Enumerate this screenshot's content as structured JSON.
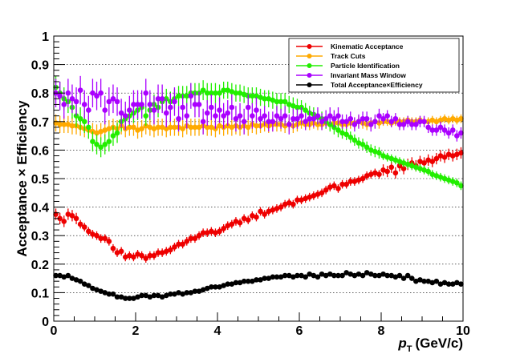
{
  "chart_data": {
    "type": "scatter",
    "xlabel_main": "p",
    "xlabel_sub": "T",
    "xlabel_unit": "(GeV/c)",
    "ylabel": "Acceptance × Efficiency",
    "xlim": [
      0,
      10
    ],
    "ylim": [
      0,
      1
    ],
    "xticks": [
      "0",
      "2",
      "4",
      "6",
      "8",
      "10"
    ],
    "yticks": [
      "0",
      "0.1",
      "0.2",
      "0.3",
      "0.4",
      "0.5",
      "0.6",
      "0.7",
      "0.8",
      "0.9",
      "1"
    ],
    "grid": "horizontal dotted",
    "legend_position": "top-right",
    "x": [
      0.05,
      0.15,
      0.25,
      0.35,
      0.45,
      0.55,
      0.65,
      0.75,
      0.85,
      0.95,
      1.05,
      1.15,
      1.25,
      1.35,
      1.45,
      1.55,
      1.65,
      1.75,
      1.85,
      1.95,
      2.05,
      2.15,
      2.25,
      2.35,
      2.45,
      2.55,
      2.65,
      2.75,
      2.85,
      2.95,
      3.05,
      3.15,
      3.25,
      3.35,
      3.45,
      3.55,
      3.65,
      3.75,
      3.85,
      3.95,
      4.05,
      4.15,
      4.25,
      4.35,
      4.45,
      4.55,
      4.65,
      4.75,
      4.85,
      4.95,
      5.05,
      5.15,
      5.25,
      5.35,
      5.45,
      5.55,
      5.65,
      5.75,
      5.85,
      5.95,
      6.05,
      6.15,
      6.25,
      6.35,
      6.45,
      6.55,
      6.65,
      6.75,
      6.85,
      6.95,
      7.05,
      7.15,
      7.25,
      7.35,
      7.45,
      7.55,
      7.65,
      7.75,
      7.85,
      7.95,
      8.05,
      8.15,
      8.25,
      8.35,
      8.45,
      8.55,
      8.65,
      8.75,
      8.85,
      8.95,
      9.05,
      9.15,
      9.25,
      9.35,
      9.45,
      9.55,
      9.65,
      9.75,
      9.85,
      9.95
    ],
    "series": [
      {
        "name": "Kinematic Acceptance",
        "color": "#ee0000",
        "values": [
          0.375,
          0.36,
          0.35,
          0.375,
          0.37,
          0.36,
          0.34,
          0.33,
          0.315,
          0.305,
          0.3,
          0.29,
          0.29,
          0.28,
          0.255,
          0.24,
          0.245,
          0.225,
          0.23,
          0.225,
          0.235,
          0.23,
          0.22,
          0.23,
          0.23,
          0.24,
          0.24,
          0.245,
          0.25,
          0.26,
          0.27,
          0.27,
          0.28,
          0.29,
          0.29,
          0.3,
          0.31,
          0.31,
          0.315,
          0.31,
          0.315,
          0.325,
          0.335,
          0.34,
          0.35,
          0.345,
          0.36,
          0.355,
          0.37,
          0.365,
          0.385,
          0.375,
          0.385,
          0.39,
          0.395,
          0.4,
          0.41,
          0.415,
          0.41,
          0.425,
          0.425,
          0.43,
          0.435,
          0.44,
          0.445,
          0.45,
          0.46,
          0.47,
          0.475,
          0.465,
          0.48,
          0.48,
          0.49,
          0.49,
          0.495,
          0.5,
          0.51,
          0.515,
          0.52,
          0.515,
          0.53,
          0.525,
          0.54,
          0.52,
          0.545,
          0.535,
          0.55,
          0.555,
          0.545,
          0.56,
          0.555,
          0.565,
          0.56,
          0.57,
          0.58,
          0.575,
          0.585,
          0.58,
          0.585,
          0.59
        ],
        "errors": [
          0.02,
          0.02,
          0.02,
          0.02,
          0.02,
          0.02,
          0.015,
          0.015,
          0.015,
          0.015,
          0.015,
          0.015,
          0.015,
          0.015,
          0.015,
          0.015,
          0.015,
          0.015,
          0.015,
          0.015,
          0.015,
          0.015,
          0.015,
          0.015,
          0.015,
          0.015,
          0.015,
          0.015,
          0.015,
          0.015,
          0.015,
          0.015,
          0.015,
          0.015,
          0.015,
          0.015,
          0.015,
          0.015,
          0.015,
          0.015,
          0.015,
          0.015,
          0.015,
          0.015,
          0.015,
          0.015,
          0.015,
          0.015,
          0.015,
          0.015,
          0.015,
          0.015,
          0.015,
          0.015,
          0.015,
          0.015,
          0.015,
          0.015,
          0.015,
          0.015,
          0.015,
          0.015,
          0.015,
          0.015,
          0.015,
          0.015,
          0.015,
          0.015,
          0.015,
          0.015,
          0.015,
          0.015,
          0.015,
          0.015,
          0.015,
          0.015,
          0.015,
          0.015,
          0.015,
          0.015,
          0.02,
          0.02,
          0.02,
          0.02,
          0.02,
          0.02,
          0.02,
          0.02,
          0.02,
          0.02,
          0.02,
          0.02,
          0.02,
          0.02,
          0.02,
          0.02,
          0.02,
          0.02,
          0.02,
          0.02
        ]
      },
      {
        "name": "Track Cuts",
        "color": "#ffaa00",
        "values": [
          0.695,
          0.69,
          0.69,
          0.69,
          0.685,
          0.685,
          0.68,
          0.675,
          0.67,
          0.665,
          0.66,
          0.665,
          0.67,
          0.675,
          0.68,
          0.675,
          0.685,
          0.675,
          0.68,
          0.68,
          0.67,
          0.675,
          0.685,
          0.68,
          0.675,
          0.68,
          0.68,
          0.675,
          0.68,
          0.68,
          0.68,
          0.675,
          0.685,
          0.68,
          0.68,
          0.68,
          0.685,
          0.68,
          0.68,
          0.675,
          0.685,
          0.68,
          0.685,
          0.68,
          0.685,
          0.68,
          0.685,
          0.68,
          0.69,
          0.685,
          0.685,
          0.69,
          0.685,
          0.69,
          0.69,
          0.69,
          0.685,
          0.69,
          0.685,
          0.69,
          0.695,
          0.69,
          0.69,
          0.695,
          0.69,
          0.69,
          0.695,
          0.69,
          0.695,
          0.695,
          0.69,
          0.69,
          0.695,
          0.695,
          0.7,
          0.695,
          0.69,
          0.695,
          0.7,
          0.695,
          0.7,
          0.7,
          0.695,
          0.7,
          0.7,
          0.7,
          0.705,
          0.7,
          0.7,
          0.705,
          0.7,
          0.7,
          0.705,
          0.7,
          0.705,
          0.71,
          0.705,
          0.71,
          0.705,
          0.71
        ],
        "errors": [
          0.03,
          0.03,
          0.03,
          0.03,
          0.03,
          0.03,
          0.03,
          0.03,
          0.03,
          0.03,
          0.03,
          0.03,
          0.03,
          0.03,
          0.03,
          0.03,
          0.03,
          0.03,
          0.03,
          0.03,
          0.03,
          0.03,
          0.03,
          0.03,
          0.03,
          0.03,
          0.03,
          0.03,
          0.03,
          0.03,
          0.03,
          0.03,
          0.03,
          0.03,
          0.03,
          0.03,
          0.03,
          0.03,
          0.03,
          0.03,
          0.03,
          0.03,
          0.03,
          0.03,
          0.03,
          0.03,
          0.03,
          0.03,
          0.03,
          0.03,
          0.025,
          0.025,
          0.025,
          0.025,
          0.025,
          0.025,
          0.025,
          0.025,
          0.025,
          0.025,
          0.02,
          0.02,
          0.02,
          0.02,
          0.02,
          0.02,
          0.02,
          0.02,
          0.02,
          0.02,
          0.02,
          0.02,
          0.02,
          0.02,
          0.02,
          0.02,
          0.02,
          0.02,
          0.02,
          0.02,
          0.015,
          0.015,
          0.015,
          0.015,
          0.015,
          0.015,
          0.015,
          0.015,
          0.015,
          0.015,
          0.015,
          0.015,
          0.015,
          0.015,
          0.015,
          0.015,
          0.015,
          0.015,
          0.015,
          0.015
        ]
      },
      {
        "name": "Particle Identification",
        "color": "#22ee00",
        "values": [
          0.82,
          0.8,
          0.78,
          0.77,
          0.75,
          0.72,
          0.71,
          0.7,
          0.68,
          0.63,
          0.62,
          0.61,
          0.62,
          0.63,
          0.65,
          0.66,
          0.7,
          0.71,
          0.72,
          0.73,
          0.74,
          0.75,
          0.72,
          0.74,
          0.76,
          0.75,
          0.77,
          0.78,
          0.77,
          0.78,
          0.79,
          0.79,
          0.79,
          0.8,
          0.8,
          0.8,
          0.81,
          0.8,
          0.8,
          0.8,
          0.8,
          0.81,
          0.81,
          0.805,
          0.8,
          0.8,
          0.795,
          0.79,
          0.79,
          0.79,
          0.785,
          0.78,
          0.78,
          0.775,
          0.77,
          0.77,
          0.77,
          0.76,
          0.755,
          0.75,
          0.75,
          0.74,
          0.73,
          0.725,
          0.715,
          0.71,
          0.7,
          0.69,
          0.68,
          0.67,
          0.66,
          0.655,
          0.645,
          0.635,
          0.625,
          0.62,
          0.61,
          0.6,
          0.595,
          0.59,
          0.58,
          0.575,
          0.57,
          0.565,
          0.56,
          0.555,
          0.55,
          0.545,
          0.54,
          0.535,
          0.53,
          0.525,
          0.515,
          0.51,
          0.505,
          0.5,
          0.495,
          0.49,
          0.485,
          0.475
        ],
        "errors": [
          0.04,
          0.04,
          0.04,
          0.04,
          0.04,
          0.04,
          0.04,
          0.04,
          0.04,
          0.035,
          0.035,
          0.035,
          0.035,
          0.035,
          0.035,
          0.035,
          0.035,
          0.035,
          0.035,
          0.035,
          0.035,
          0.035,
          0.035,
          0.035,
          0.035,
          0.035,
          0.035,
          0.035,
          0.035,
          0.035,
          0.035,
          0.035,
          0.035,
          0.035,
          0.035,
          0.035,
          0.035,
          0.035,
          0.035,
          0.035,
          0.03,
          0.03,
          0.03,
          0.03,
          0.03,
          0.03,
          0.03,
          0.03,
          0.03,
          0.03,
          0.03,
          0.03,
          0.03,
          0.03,
          0.03,
          0.03,
          0.03,
          0.03,
          0.03,
          0.03,
          0.025,
          0.025,
          0.025,
          0.025,
          0.025,
          0.025,
          0.025,
          0.025,
          0.025,
          0.025,
          0.02,
          0.02,
          0.02,
          0.02,
          0.02,
          0.02,
          0.02,
          0.02,
          0.02,
          0.02,
          0.015,
          0.015,
          0.015,
          0.015,
          0.015,
          0.015,
          0.015,
          0.015,
          0.015,
          0.015,
          0.015,
          0.015,
          0.015,
          0.015,
          0.015,
          0.015,
          0.015,
          0.015,
          0.015,
          0.015
        ]
      },
      {
        "name": "Invariant Mass Window",
        "color": "#aa00ff",
        "values": [
          0.8,
          0.79,
          0.76,
          0.8,
          0.78,
          0.77,
          0.81,
          0.76,
          0.74,
          0.8,
          0.79,
          0.8,
          0.74,
          0.77,
          0.78,
          0.77,
          0.73,
          0.72,
          0.74,
          0.76,
          0.76,
          0.76,
          0.8,
          0.76,
          0.74,
          0.78,
          0.78,
          0.73,
          0.75,
          0.77,
          0.71,
          0.75,
          0.72,
          0.79,
          0.76,
          0.76,
          0.7,
          0.73,
          0.75,
          0.72,
          0.74,
          0.72,
          0.73,
          0.75,
          0.71,
          0.72,
          0.7,
          0.75,
          0.72,
          0.74,
          0.71,
          0.72,
          0.7,
          0.7,
          0.72,
          0.71,
          0.72,
          0.69,
          0.71,
          0.71,
          0.72,
          0.7,
          0.71,
          0.71,
          0.72,
          0.7,
          0.71,
          0.72,
          0.71,
          0.72,
          0.7,
          0.7,
          0.71,
          0.69,
          0.7,
          0.71,
          0.71,
          0.69,
          0.7,
          0.72,
          0.71,
          0.72,
          0.7,
          0.71,
          0.69,
          0.69,
          0.7,
          0.69,
          0.69,
          0.7,
          0.7,
          0.68,
          0.67,
          0.67,
          0.68,
          0.67,
          0.66,
          0.67,
          0.65,
          0.66
        ],
        "errors": [
          0.05,
          0.05,
          0.05,
          0.05,
          0.05,
          0.05,
          0.05,
          0.05,
          0.05,
          0.05,
          0.05,
          0.05,
          0.05,
          0.05,
          0.05,
          0.05,
          0.05,
          0.05,
          0.05,
          0.05,
          0.05,
          0.05,
          0.05,
          0.05,
          0.05,
          0.05,
          0.05,
          0.05,
          0.05,
          0.05,
          0.045,
          0.045,
          0.045,
          0.045,
          0.045,
          0.045,
          0.045,
          0.045,
          0.045,
          0.045,
          0.045,
          0.045,
          0.045,
          0.045,
          0.045,
          0.045,
          0.045,
          0.045,
          0.045,
          0.045,
          0.035,
          0.035,
          0.035,
          0.035,
          0.035,
          0.035,
          0.035,
          0.035,
          0.035,
          0.035,
          0.03,
          0.03,
          0.03,
          0.03,
          0.03,
          0.03,
          0.03,
          0.03,
          0.03,
          0.03,
          0.025,
          0.025,
          0.025,
          0.025,
          0.025,
          0.025,
          0.025,
          0.025,
          0.025,
          0.025,
          0.02,
          0.02,
          0.02,
          0.02,
          0.02,
          0.02,
          0.02,
          0.02,
          0.02,
          0.02,
          0.02,
          0.02,
          0.02,
          0.02,
          0.02,
          0.02,
          0.02,
          0.02,
          0.02,
          0.02
        ]
      },
      {
        "name": "Total Acceptance×Efficiency",
        "color": "#000000",
        "values": [
          0.16,
          0.16,
          0.155,
          0.16,
          0.15,
          0.145,
          0.14,
          0.13,
          0.125,
          0.115,
          0.11,
          0.105,
          0.1,
          0.095,
          0.095,
          0.085,
          0.085,
          0.08,
          0.08,
          0.08,
          0.085,
          0.09,
          0.09,
          0.085,
          0.09,
          0.09,
          0.085,
          0.09,
          0.095,
          0.095,
          0.1,
          0.095,
          0.1,
          0.1,
          0.105,
          0.105,
          0.11,
          0.115,
          0.12,
          0.12,
          0.12,
          0.125,
          0.13,
          0.13,
          0.135,
          0.135,
          0.14,
          0.14,
          0.14,
          0.145,
          0.145,
          0.15,
          0.15,
          0.155,
          0.155,
          0.155,
          0.16,
          0.16,
          0.155,
          0.16,
          0.16,
          0.155,
          0.165,
          0.16,
          0.155,
          0.165,
          0.16,
          0.165,
          0.16,
          0.16,
          0.16,
          0.17,
          0.165,
          0.16,
          0.165,
          0.16,
          0.17,
          0.165,
          0.16,
          0.16,
          0.165,
          0.16,
          0.16,
          0.155,
          0.16,
          0.15,
          0.16,
          0.15,
          0.14,
          0.145,
          0.14,
          0.14,
          0.135,
          0.14,
          0.13,
          0.135,
          0.13,
          0.13,
          0.135,
          0.13
        ],
        "errors": [
          0.008,
          0.008,
          0.008,
          0.008,
          0.008,
          0.008,
          0.008,
          0.008,
          0.008,
          0.008,
          0.008,
          0.008,
          0.008,
          0.008,
          0.008,
          0.008,
          0.008,
          0.008,
          0.008,
          0.008,
          0.008,
          0.008,
          0.008,
          0.008,
          0.008,
          0.008,
          0.008,
          0.008,
          0.008,
          0.008,
          0.008,
          0.008,
          0.008,
          0.008,
          0.008,
          0.008,
          0.008,
          0.008,
          0.008,
          0.008,
          0.008,
          0.008,
          0.008,
          0.008,
          0.008,
          0.008,
          0.008,
          0.008,
          0.008,
          0.008,
          0.008,
          0.008,
          0.008,
          0.008,
          0.008,
          0.008,
          0.008,
          0.008,
          0.008,
          0.008,
          0.008,
          0.008,
          0.008,
          0.008,
          0.008,
          0.008,
          0.008,
          0.008,
          0.008,
          0.008,
          0.008,
          0.008,
          0.008,
          0.008,
          0.008,
          0.008,
          0.008,
          0.008,
          0.008,
          0.008,
          0.008,
          0.008,
          0.008,
          0.008,
          0.008,
          0.008,
          0.008,
          0.008,
          0.008,
          0.008,
          0.008,
          0.008,
          0.008,
          0.008,
          0.008,
          0.008,
          0.008,
          0.008,
          0.008,
          0.008
        ]
      }
    ]
  }
}
